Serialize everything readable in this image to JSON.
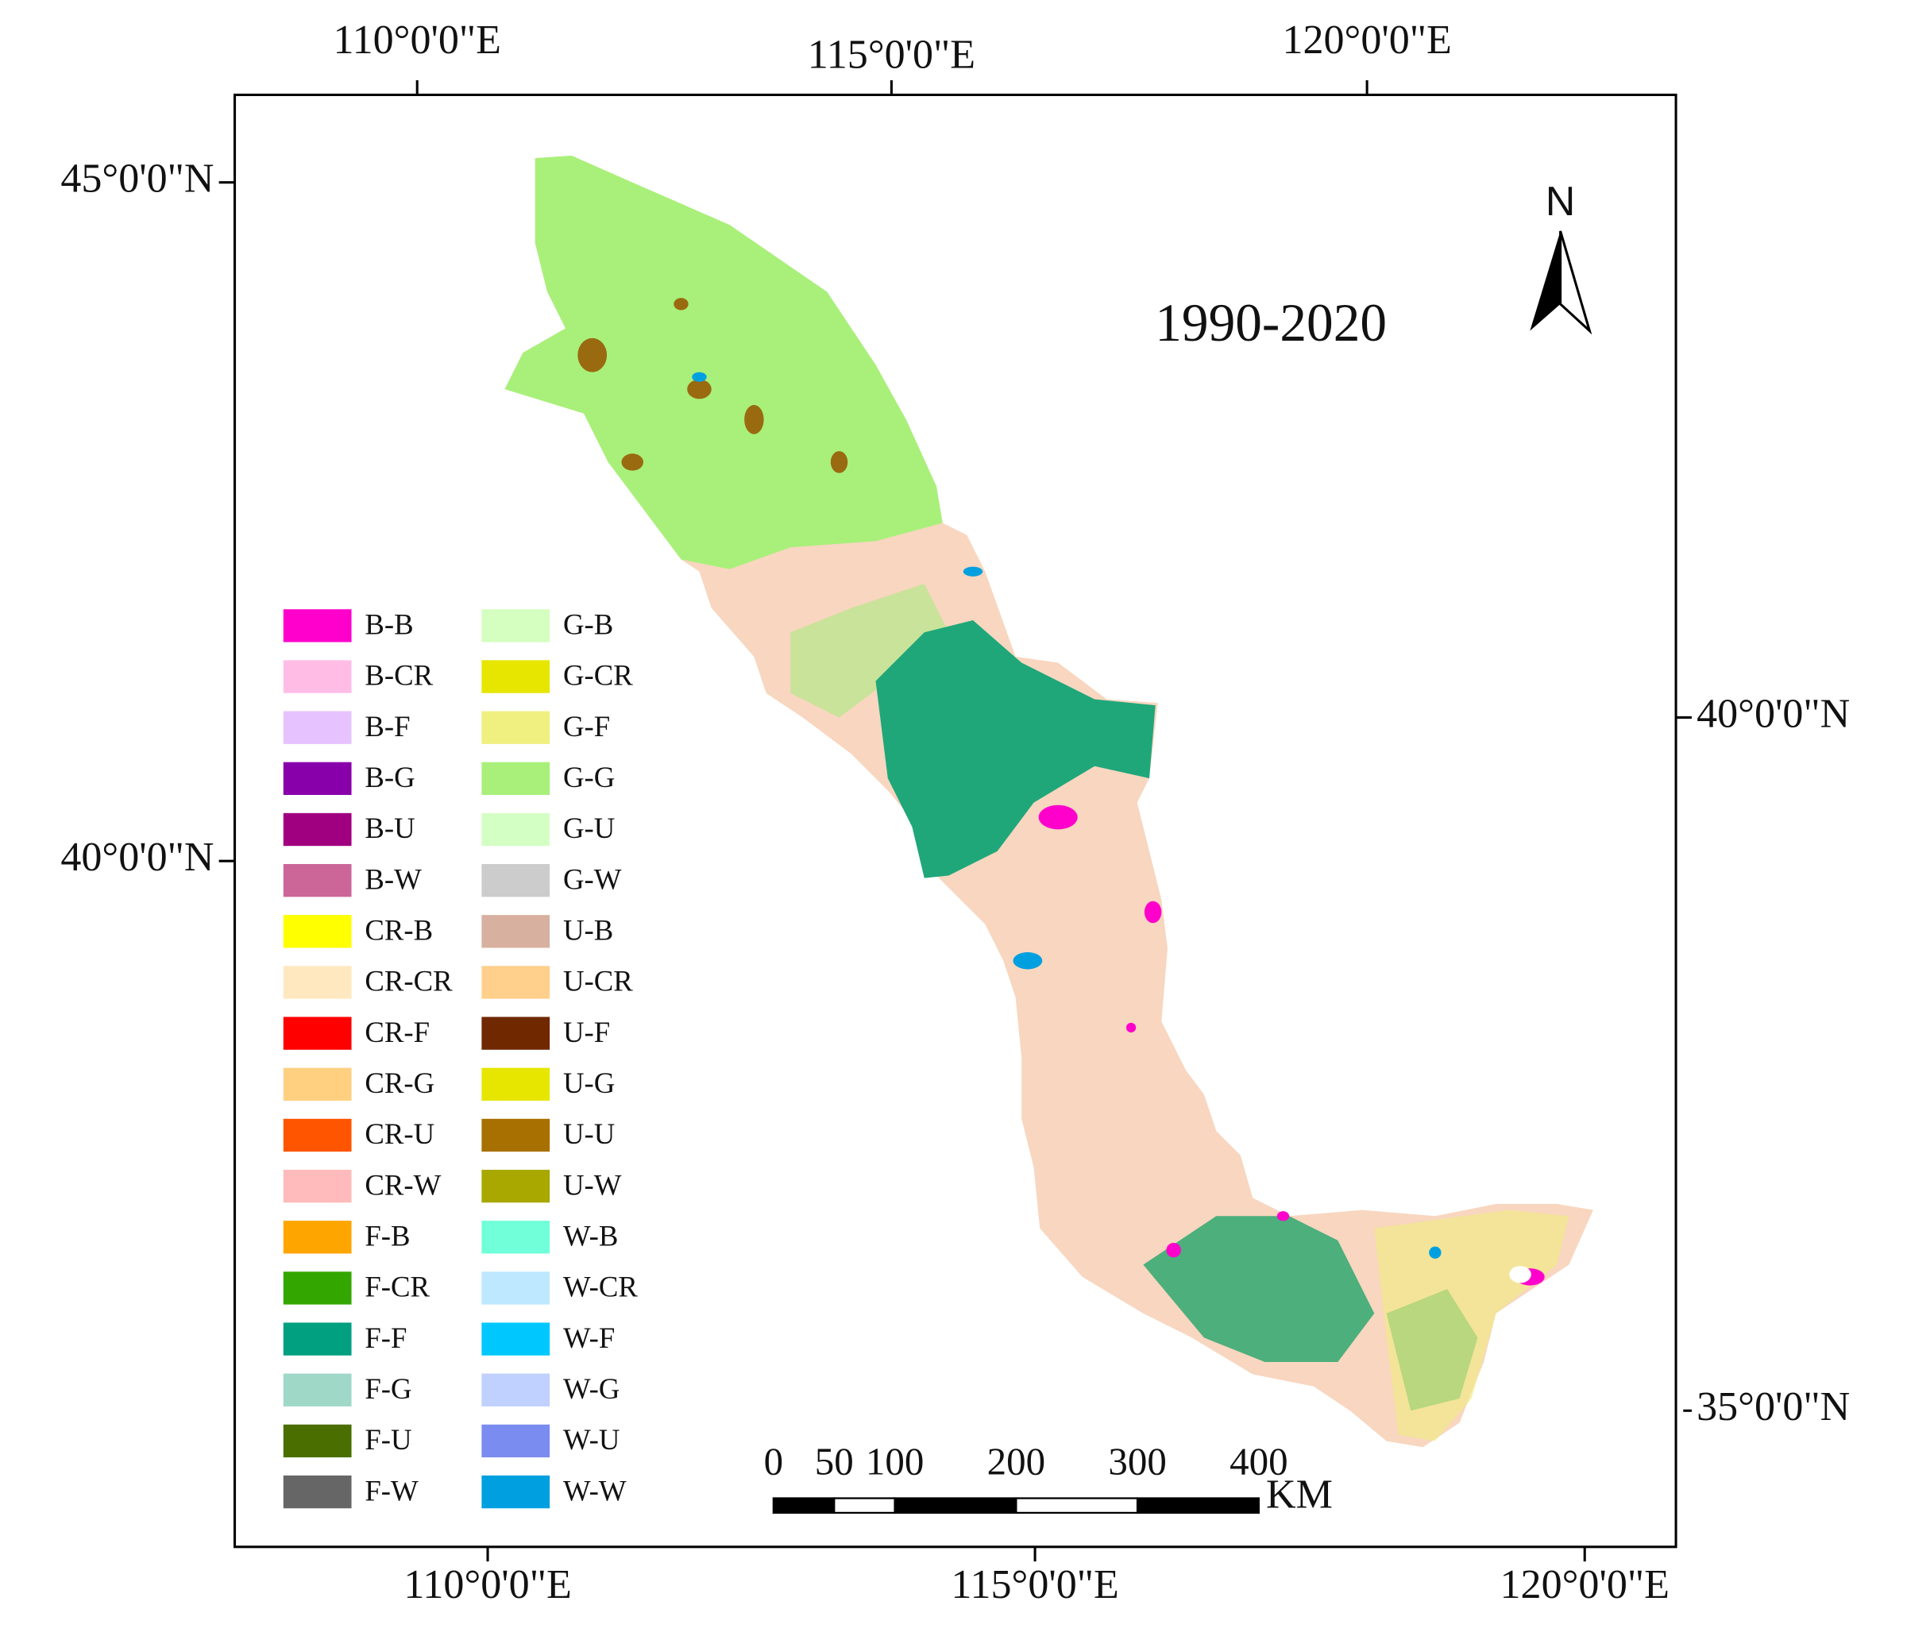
{
  "title": "1990-2020",
  "north_arrow": "N",
  "graticule": {
    "top": [
      "110°0'0\"E",
      "115°0'0\"E",
      "120°0'0\"E"
    ],
    "bottom": [
      "110°0'0\"E",
      "115°0'0\"E",
      "120°0'0\"E"
    ],
    "left": [
      "45°0'0\"N",
      "40°0'0\"N"
    ],
    "right": [
      "40°0'0\"N",
      "35°0'0\"N"
    ]
  },
  "legend": [
    {
      "label": "B-B",
      "color": "#ff00cc"
    },
    {
      "label": "B-CR",
      "color": "#ffbde6"
    },
    {
      "label": "B-F",
      "color": "#e6c3ff"
    },
    {
      "label": "B-G",
      "color": "#8800aa"
    },
    {
      "label": "B-U",
      "color": "#a00080"
    },
    {
      "label": "B-W",
      "color": "#cc6699"
    },
    {
      "label": "CR-B",
      "color": "#ffff00"
    },
    {
      "label": "CR-CR",
      "color": "#ffe8c0"
    },
    {
      "label": "CR-F",
      "color": "#ff0000"
    },
    {
      "label": "CR-G",
      "color": "#ffd080"
    },
    {
      "label": "CR-U",
      "color": "#ff5500"
    },
    {
      "label": "CR-W",
      "color": "#ffbbbb"
    },
    {
      "label": "F-B",
      "color": "#ffa500"
    },
    {
      "label": "F-CR",
      "color": "#33a600"
    },
    {
      "label": "F-F",
      "color": "#00a080"
    },
    {
      "label": "F-G",
      "color": "#a0d8c8"
    },
    {
      "label": "F-U",
      "color": "#4a6e00"
    },
    {
      "label": "F-W",
      "color": "#666666"
    },
    {
      "label": "G-B",
      "color": "#d4ffc0"
    },
    {
      "label": "G-CR",
      "color": "#e6e600"
    },
    {
      "label": "G-F",
      "color": "#f0f080"
    },
    {
      "label": "G-G",
      "color": "#a8f07a"
    },
    {
      "label": "G-U",
      "color": "#d4ffc4"
    },
    {
      "label": "G-W",
      "color": "#cccccc"
    },
    {
      "label": "U-B",
      "color": "#d8b0a0"
    },
    {
      "label": "U-CR",
      "color": "#ffd08c"
    },
    {
      "label": "U-F",
      "color": "#702800"
    },
    {
      "label": "U-G",
      "color": "#e6e600"
    },
    {
      "label": "U-U",
      "color": "#a87000"
    },
    {
      "label": "U-W",
      "color": "#a8a800"
    },
    {
      "label": "W-B",
      "color": "#70ffd8"
    },
    {
      "label": "W-CR",
      "color": "#bee8ff"
    },
    {
      "label": "W-F",
      "color": "#00c8ff"
    },
    {
      "label": "W-G",
      "color": "#c0d0ff"
    },
    {
      "label": "W-U",
      "color": "#7b8cf0"
    },
    {
      "label": "W-W",
      "color": "#00a0e0"
    }
  ],
  "scale_bar": {
    "ticks": [
      0,
      50,
      100,
      200,
      300,
      400
    ],
    "unit": "KM"
  }
}
